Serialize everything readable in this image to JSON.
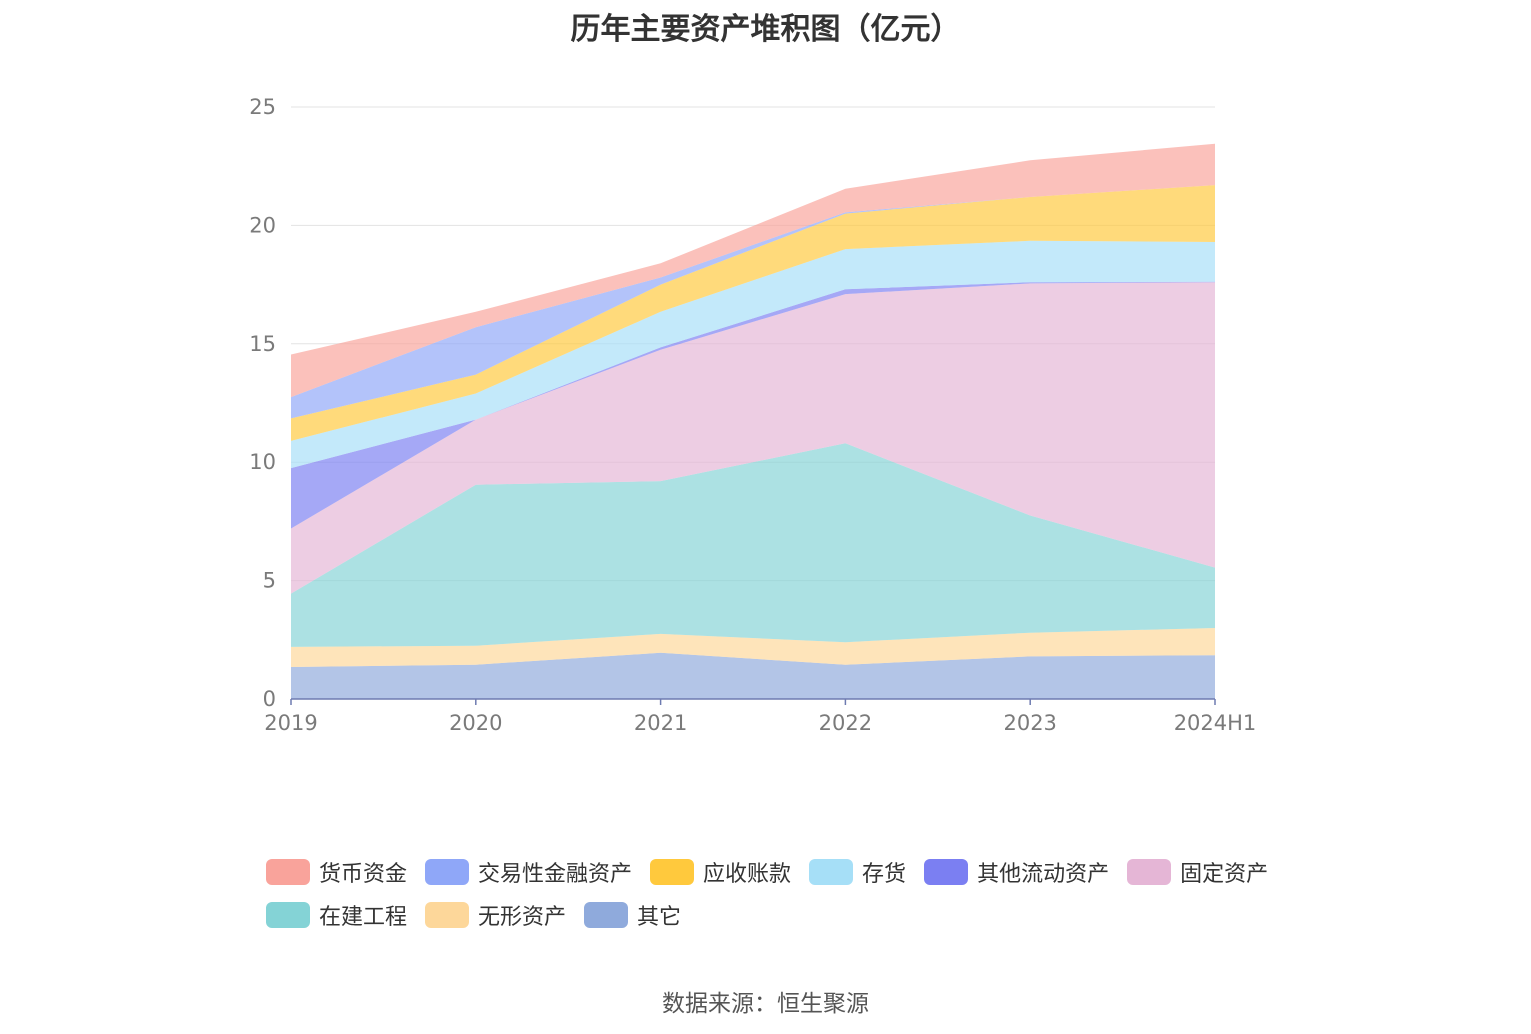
{
  "chart_data": {
    "type": "area",
    "stacked": true,
    "title": "历年主要资产堆积图（亿元）",
    "x": [
      "2019",
      "2020",
      "2021",
      "2022",
      "2023",
      "2024H1"
    ],
    "ylim": [
      0,
      25
    ],
    "yticks": [
      0,
      5,
      10,
      15,
      20,
      25
    ],
    "grid": true,
    "legend_position": "bottom",
    "series": [
      {
        "name": "其它",
        "color": "#8FAADC",
        "values": [
          1.35,
          1.45,
          1.95,
          1.45,
          1.8,
          1.85
        ]
      },
      {
        "name": "无形资产",
        "color": "#FDD79A",
        "values": [
          0.85,
          0.8,
          0.8,
          0.95,
          1.0,
          1.15
        ]
      },
      {
        "name": "在建工程",
        "color": "#84D3D6",
        "values": [
          2.25,
          6.8,
          6.45,
          8.4,
          4.95,
          2.55
        ]
      },
      {
        "name": "固定资产",
        "color": "#E5B6D6",
        "values": [
          2.75,
          2.75,
          5.55,
          6.3,
          9.8,
          12.05
        ]
      },
      {
        "name": "其他流动资产",
        "color": "#7B7FF2",
        "values": [
          2.55,
          0.0,
          0.1,
          0.2,
          0.05,
          0.02
        ]
      },
      {
        "name": "存货",
        "color": "#A6DFF7",
        "values": [
          1.15,
          1.1,
          1.5,
          1.7,
          1.75,
          1.68
        ]
      },
      {
        "name": "应收账款",
        "color": "#FFC93D",
        "values": [
          0.95,
          0.8,
          1.15,
          1.5,
          1.85,
          2.4
        ]
      },
      {
        "name": "交易性金融资产",
        "color": "#8FA7F8",
        "values": [
          0.9,
          2.0,
          0.3,
          0.05,
          0.0,
          0.0
        ]
      },
      {
        "name": "货币资金",
        "color": "#F9A39B",
        "values": [
          1.8,
          0.65,
          0.6,
          1.0,
          1.55,
          1.75
        ]
      }
    ]
  },
  "legend": {
    "row1": [
      "货币资金",
      "交易性金融资产",
      "应收账款",
      "存货",
      "其他流动资产",
      "固定资产"
    ],
    "row2": [
      "在建工程",
      "无形资产",
      "其它"
    ]
  },
  "source": "数据来源：恒生聚源"
}
